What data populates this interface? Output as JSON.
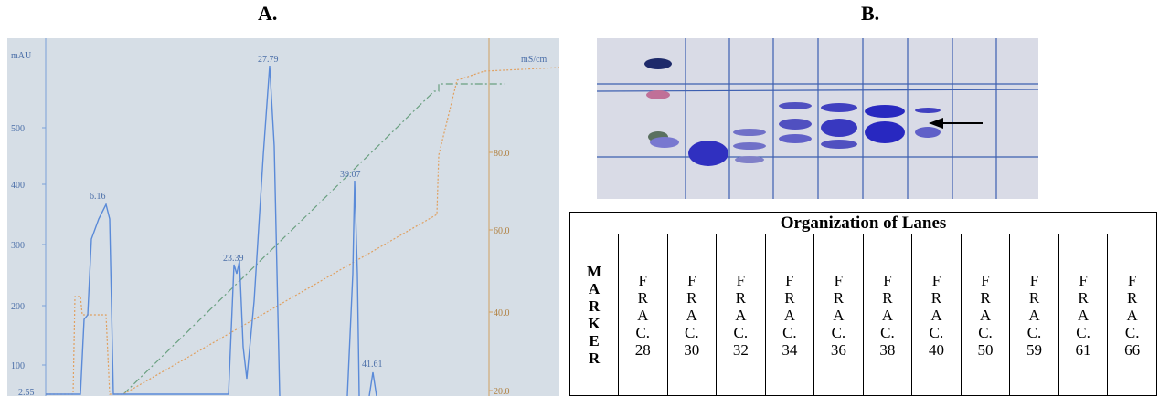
{
  "panels": {
    "a": {
      "label": "A.",
      "y_axis_label": "mAU",
      "y2_axis_label": "mS/cm",
      "yticks": [
        "500",
        "400",
        "300",
        "200",
        "100"
      ],
      "y2ticks": [
        "80.0",
        "60.0",
        "40.0",
        "20.0"
      ],
      "peak_labels": [
        "2.55",
        "6.16",
        "23.39",
        "27.79",
        "39.07",
        "41.61"
      ]
    },
    "b": {
      "label": "B."
    }
  },
  "table": {
    "title": "Organization of Lanes",
    "columns": [
      [
        "M",
        "A",
        "R",
        "K",
        "E",
        "R"
      ],
      [
        "F",
        "R",
        "A",
        "C.",
        "28"
      ],
      [
        "F",
        "R",
        "A",
        "C.",
        "30"
      ],
      [
        "F",
        "R",
        "A",
        "C.",
        "32"
      ],
      [
        "F",
        "R",
        "A",
        "C.",
        "34"
      ],
      [
        "F",
        "R",
        "A",
        "C.",
        "36"
      ],
      [
        "F",
        "R",
        "A",
        "C.",
        "38"
      ],
      [
        "F",
        "R",
        "A",
        "C.",
        "40"
      ],
      [
        "F",
        "R",
        "A",
        "C.",
        "50"
      ],
      [
        "F",
        "R",
        "A",
        "C.",
        "59"
      ],
      [
        "F",
        "R",
        "A",
        "C.",
        "61"
      ],
      [
        "F",
        "R",
        "A",
        "C.",
        "66"
      ]
    ]
  }
}
